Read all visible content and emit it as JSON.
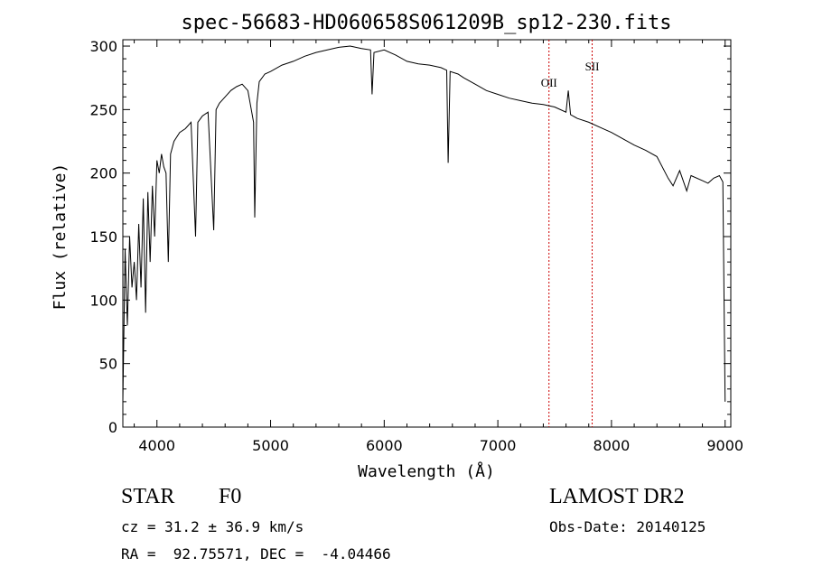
{
  "chart_data": {
    "type": "line",
    "title": "spec-56683-HD060658S061209B_sp12-230.fits",
    "xlabel": "Wavelength (Å)",
    "ylabel": "Flux (relative)",
    "xlim": [
      3700,
      9050
    ],
    "ylim": [
      0,
      305
    ],
    "xticks": [
      4000,
      5000,
      6000,
      7000,
      8000,
      9000
    ],
    "yticks": [
      0,
      50,
      100,
      150,
      200,
      250,
      300
    ],
    "grid": false,
    "series": [
      {
        "x": [
          3700,
          3720,
          3740,
          3760,
          3780,
          3800,
          3820,
          3840,
          3860,
          3880,
          3900,
          3920,
          3940,
          3960,
          3980,
          4000,
          4020,
          4040,
          4060,
          4080,
          4100,
          4120,
          4150,
          4200,
          4250,
          4300,
          4340,
          4360,
          4400,
          4450,
          4500,
          4520,
          4550,
          4600,
          4650,
          4700,
          4750,
          4800,
          4850,
          4861,
          4880,
          4900,
          4950,
          5000,
          5100,
          5200,
          5300,
          5400,
          5500,
          5600,
          5700,
          5800,
          5880,
          5893,
          5910,
          6000,
          6100,
          6200,
          6300,
          6400,
          6500,
          6550,
          6563,
          6580,
          6650,
          6700,
          6800,
          6900,
          7000,
          7100,
          7200,
          7300,
          7400,
          7500,
          7600,
          7620,
          7640,
          7700,
          7800,
          7900,
          8000,
          8100,
          8200,
          8300,
          8400,
          8498,
          8542,
          8600,
          8662,
          8700,
          8800,
          8850,
          8900,
          8950,
          8980,
          9000
        ],
        "y": [
          20,
          140,
          80,
          150,
          110,
          130,
          100,
          160,
          110,
          180,
          90,
          185,
          130,
          190,
          150,
          210,
          200,
          215,
          205,
          200,
          130,
          215,
          225,
          232,
          235,
          240,
          150,
          240,
          245,
          248,
          155,
          250,
          255,
          260,
          265,
          268,
          270,
          265,
          240,
          165,
          255,
          272,
          278,
          280,
          285,
          288,
          292,
          295,
          297,
          299,
          300,
          298,
          297,
          262,
          295,
          297,
          293,
          288,
          286,
          285,
          283,
          281,
          208,
          280,
          278,
          275,
          270,
          265,
          262,
          259,
          257,
          255,
          254,
          252,
          248,
          265,
          246,
          243,
          240,
          236,
          232,
          227,
          222,
          218,
          213,
          196,
          190,
          202,
          186,
          198,
          194,
          192,
          196,
          198,
          193,
          20
        ]
      }
    ],
    "annotations": [
      {
        "label": "OII",
        "x": 7450
      },
      {
        "label": "SII",
        "x": 7830
      }
    ]
  },
  "info": {
    "object_type": "STAR",
    "subclass": "F0",
    "redshift_line": "cz = 31.2 ± 36.9 km/s",
    "coords_line": "RA =  92.75571, DEC =  -4.04466",
    "survey": "LAMOST DR2",
    "obs_date_line": "Obs-Date: 20140125"
  }
}
